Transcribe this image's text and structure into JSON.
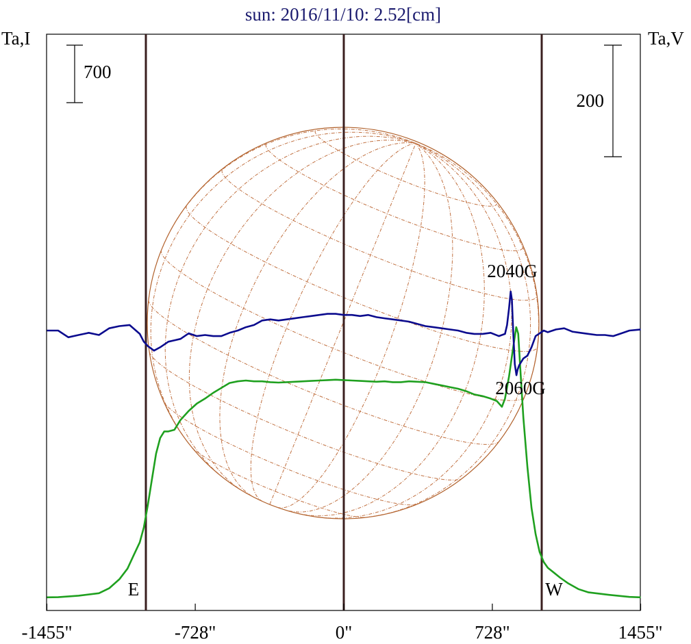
{
  "chart_data": {
    "type": "line",
    "title": "sun: 2016/11/10: 2.52[cm]",
    "title_color": "#1a1a6e",
    "left_axis_label": "Ta,I",
    "right_axis_label": "Ta,V",
    "x_ticks": [
      {
        "value": -1455,
        "label": "-1455\""
      },
      {
        "value": -728,
        "label": "-728\""
      },
      {
        "value": 0,
        "label": "0\""
      },
      {
        "value": 728,
        "label": "728\""
      },
      {
        "value": 1455,
        "label": "1455\""
      }
    ],
    "xlim": [
      -1455,
      1455
    ],
    "left_scale_bar": {
      "label": "700",
      "value": 700
    },
    "right_scale_bar": {
      "label": "200",
      "value": 200
    },
    "limb_markers": [
      {
        "x": -970,
        "label": "E"
      },
      {
        "x": 0,
        "label": ""
      },
      {
        "x": 970,
        "label": "W"
      }
    ],
    "annotations": [
      {
        "text": "2040G",
        "x": 840
      },
      {
        "text": "2060G",
        "x": 860
      }
    ],
    "series": [
      {
        "name": "Ta,I",
        "color": "#1fa01f",
        "points": [
          [
            -1455,
            10
          ],
          [
            -1400,
            12
          ],
          [
            -1300,
            30
          ],
          [
            -1200,
            60
          ],
          [
            -1150,
            120
          ],
          [
            -1100,
            230
          ],
          [
            -1060,
            360
          ],
          [
            -1030,
            520
          ],
          [
            -1000,
            680
          ],
          [
            -980,
            860
          ],
          [
            -960,
            1140
          ],
          [
            -940,
            1450
          ],
          [
            -920,
            1760
          ],
          [
            -900,
            1950
          ],
          [
            -880,
            2030
          ],
          [
            -860,
            2030
          ],
          [
            -830,
            2050
          ],
          [
            -800,
            2170
          ],
          [
            -760,
            2280
          ],
          [
            -720,
            2370
          ],
          [
            -680,
            2430
          ],
          [
            -640,
            2500
          ],
          [
            -600,
            2560
          ],
          [
            -560,
            2620
          ],
          [
            -520,
            2640
          ],
          [
            -480,
            2650
          ],
          [
            -440,
            2640
          ],
          [
            -400,
            2640
          ],
          [
            -360,
            2630
          ],
          [
            -320,
            2625
          ],
          [
            -280,
            2630
          ],
          [
            -240,
            2635
          ],
          [
            -200,
            2640
          ],
          [
            -160,
            2645
          ],
          [
            -120,
            2650
          ],
          [
            -80,
            2655
          ],
          [
            -40,
            2660
          ],
          [
            0,
            2655
          ],
          [
            40,
            2650
          ],
          [
            80,
            2645
          ],
          [
            120,
            2640
          ],
          [
            160,
            2635
          ],
          [
            200,
            2640
          ],
          [
            240,
            2630
          ],
          [
            280,
            2630
          ],
          [
            320,
            2640
          ],
          [
            360,
            2635
          ],
          [
            400,
            2630
          ],
          [
            440,
            2610
          ],
          [
            480,
            2590
          ],
          [
            520,
            2570
          ],
          [
            560,
            2550
          ],
          [
            600,
            2520
          ],
          [
            640,
            2480
          ],
          [
            680,
            2460
          ],
          [
            720,
            2430
          ],
          [
            750,
            2400
          ],
          [
            775,
            2330
          ],
          [
            790,
            2430
          ],
          [
            810,
            2700
          ],
          [
            830,
            3050
          ],
          [
            845,
            3300
          ],
          [
            855,
            3220
          ],
          [
            865,
            2800
          ],
          [
            880,
            2200
          ],
          [
            900,
            1600
          ],
          [
            920,
            1100
          ],
          [
            940,
            780
          ],
          [
            960,
            560
          ],
          [
            980,
            440
          ],
          [
            1000,
            370
          ],
          [
            1030,
            310
          ],
          [
            1060,
            250
          ],
          [
            1100,
            180
          ],
          [
            1150,
            110
          ],
          [
            1200,
            70
          ],
          [
            1300,
            40
          ],
          [
            1400,
            15
          ],
          [
            1455,
            10
          ]
        ]
      },
      {
        "name": "Ta,V",
        "color": "#0b0b8e",
        "points": [
          [
            -1455,
            0
          ],
          [
            -1400,
            0
          ],
          [
            -1350,
            -12
          ],
          [
            -1300,
            -8
          ],
          [
            -1250,
            -4
          ],
          [
            -1200,
            -8
          ],
          [
            -1150,
            4
          ],
          [
            -1100,
            8
          ],
          [
            -1050,
            10
          ],
          [
            -1000,
            -6
          ],
          [
            -980,
            -20
          ],
          [
            -960,
            -28
          ],
          [
            -930,
            -36
          ],
          [
            -900,
            -30
          ],
          [
            -860,
            -20
          ],
          [
            -800,
            -15
          ],
          [
            -760,
            -5
          ],
          [
            -720,
            -10
          ],
          [
            -680,
            -8
          ],
          [
            -640,
            -10
          ],
          [
            -600,
            -10
          ],
          [
            -560,
            -4
          ],
          [
            -520,
            0
          ],
          [
            -480,
            6
          ],
          [
            -440,
            10
          ],
          [
            -400,
            18
          ],
          [
            -360,
            20
          ],
          [
            -320,
            18
          ],
          [
            -280,
            20
          ],
          [
            -240,
            22
          ],
          [
            -200,
            24
          ],
          [
            -160,
            26
          ],
          [
            -120,
            28
          ],
          [
            -80,
            30
          ],
          [
            -40,
            30
          ],
          [
            0,
            28
          ],
          [
            40,
            28
          ],
          [
            80,
            26
          ],
          [
            120,
            28
          ],
          [
            160,
            24
          ],
          [
            200,
            22
          ],
          [
            240,
            20
          ],
          [
            280,
            18
          ],
          [
            320,
            16
          ],
          [
            360,
            12
          ],
          [
            400,
            8
          ],
          [
            440,
            6
          ],
          [
            480,
            4
          ],
          [
            520,
            2
          ],
          [
            560,
            0
          ],
          [
            600,
            -4
          ],
          [
            640,
            -6
          ],
          [
            680,
            -6
          ],
          [
            720,
            -4
          ],
          [
            760,
            -10
          ],
          [
            790,
            -6
          ],
          [
            800,
            10
          ],
          [
            810,
            40
          ],
          [
            818,
            70
          ],
          [
            824,
            55
          ],
          [
            830,
            0
          ],
          [
            838,
            -60
          ],
          [
            846,
            -80
          ],
          [
            852,
            -70
          ],
          [
            860,
            -62
          ],
          [
            880,
            -50
          ],
          [
            900,
            -45
          ],
          [
            920,
            -30
          ],
          [
            940,
            -10
          ],
          [
            960,
            -5
          ],
          [
            980,
            0
          ],
          [
            1000,
            -3
          ],
          [
            1040,
            2
          ],
          [
            1080,
            4
          ],
          [
            1120,
            -2
          ],
          [
            1160,
            -4
          ],
          [
            1200,
            -6
          ],
          [
            1240,
            -8
          ],
          [
            1280,
            -8
          ],
          [
            1320,
            -10
          ],
          [
            1360,
            -5
          ],
          [
            1400,
            0
          ],
          [
            1455,
            2
          ]
        ]
      }
    ]
  }
}
